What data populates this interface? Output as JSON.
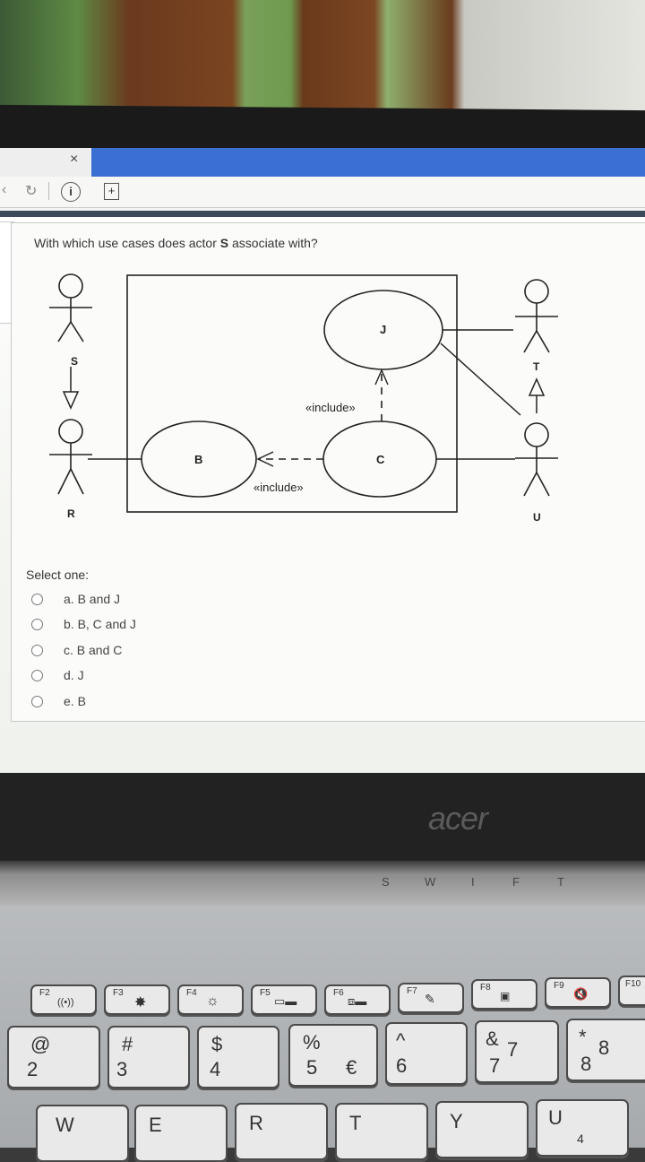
{
  "tab": {
    "close_label": "×"
  },
  "address_bar": {
    "back": "‹",
    "reload": "↻",
    "info": "i",
    "new_page": "+"
  },
  "question": {
    "text_before": "With which use cases does actor ",
    "actor": "S",
    "text_after": " associate with?"
  },
  "diagram": {
    "actors": [
      "S",
      "R",
      "T",
      "U"
    ],
    "use_cases": [
      "J",
      "B",
      "C"
    ],
    "relations": [
      "«include»",
      "«include»"
    ]
  },
  "select_prompt": "Select one:",
  "options": [
    {
      "label": "a. B and J"
    },
    {
      "label": "b. B, C and J"
    },
    {
      "label": "c. B and C"
    },
    {
      "label": "d. J"
    },
    {
      "label": "e. B"
    }
  ],
  "bezel": {
    "logo": "acer"
  },
  "status_strip": [
    "S",
    "W",
    "I",
    "F",
    "T"
  ],
  "keyboard": {
    "fn_row": [
      "F2",
      "F3",
      "F4",
      "F5",
      "F6",
      "F7",
      "F8",
      "F9",
      "F10"
    ],
    "number_row": [
      {
        "top": "@",
        "main": "2"
      },
      {
        "top": "#",
        "main": "3"
      },
      {
        "top": "$",
        "main": "4"
      },
      {
        "top": "%",
        "main": "5",
        "extra": "€"
      },
      {
        "top": "^",
        "main": "6"
      },
      {
        "top": "&",
        "main": "7",
        "extra": "7"
      },
      {
        "top": "*",
        "main": "8",
        "extra": "8"
      }
    ],
    "letter_row": [
      "W",
      "E",
      "R",
      "T",
      "Y",
      "U"
    ],
    "numpad_hint": "4"
  }
}
